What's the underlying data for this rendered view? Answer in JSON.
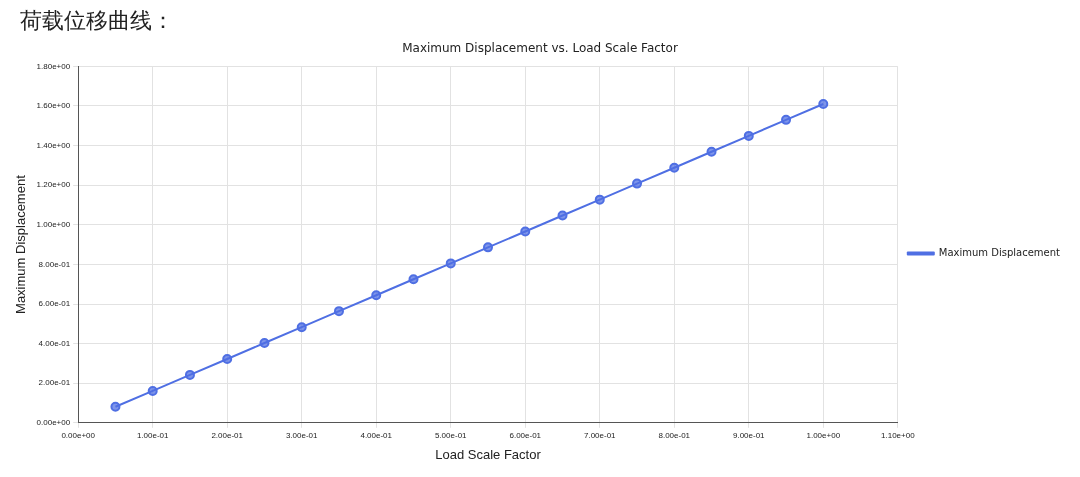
{
  "chart_data": {
    "type": "line",
    "title": "荷载位移曲线：",
    "subtitle": "Maximum Displacement vs. Load Scale Factor",
    "xlabel": "Load Scale Factor",
    "ylabel": "Maximum Displacement",
    "x": [
      0.05,
      0.1,
      0.15,
      0.2,
      0.25,
      0.3,
      0.35,
      0.4,
      0.45,
      0.5,
      0.55,
      0.6,
      0.65,
      0.7,
      0.75,
      0.8,
      0.85,
      0.9,
      0.95,
      1.0
    ],
    "series": [
      {
        "name": "Maximum Displacement",
        "color": "#4f6fe3",
        "values": [
          0.081,
          0.161,
          0.242,
          0.322,
          0.403,
          0.483,
          0.564,
          0.644,
          0.725,
          0.805,
          0.886,
          0.966,
          1.047,
          1.127,
          1.208,
          1.288,
          1.369,
          1.449,
          1.53,
          1.61
        ]
      }
    ],
    "xlim": [
      0,
      1.1
    ],
    "ylim": [
      0,
      1.8
    ],
    "xticks": [
      {
        "value": 0,
        "label": "0.00e+00"
      },
      {
        "value": 0.1,
        "label": "1.00e-01"
      },
      {
        "value": 0.2,
        "label": "2.00e-01"
      },
      {
        "value": 0.3,
        "label": "3.00e-01"
      },
      {
        "value": 0.4,
        "label": "4.00e-01"
      },
      {
        "value": 0.5,
        "label": "5.00e-01"
      },
      {
        "value": 0.6,
        "label": "6.00e-01"
      },
      {
        "value": 0.7,
        "label": "7.00e-01"
      },
      {
        "value": 0.8,
        "label": "8.00e-01"
      },
      {
        "value": 0.9,
        "label": "9.00e-01"
      },
      {
        "value": 1.0,
        "label": "1.00e+00"
      },
      {
        "value": 1.1,
        "label": "1.10e+00"
      }
    ],
    "yticks": [
      {
        "value": 0,
        "label": "0.00e+00"
      },
      {
        "value": 0.2,
        "label": "2.00e-01"
      },
      {
        "value": 0.4,
        "label": "4.00e-01"
      },
      {
        "value": 0.6,
        "label": "6.00e-01"
      },
      {
        "value": 0.8,
        "label": "8.00e-01"
      },
      {
        "value": 1.0,
        "label": "1.00e+00"
      },
      {
        "value": 1.2,
        "label": "1.20e+00"
      },
      {
        "value": 1.4,
        "label": "1.40e+00"
      },
      {
        "value": 1.6,
        "label": "1.60e+00"
      },
      {
        "value": 1.8,
        "label": "1.80e+00"
      }
    ],
    "grid": true,
    "legend": "right",
    "marker": "circle",
    "line_style": "solid"
  }
}
